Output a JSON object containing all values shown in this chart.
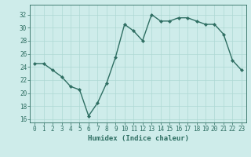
{
  "x": [
    0,
    1,
    2,
    3,
    4,
    5,
    6,
    7,
    8,
    9,
    10,
    11,
    12,
    13,
    14,
    15,
    16,
    17,
    18,
    19,
    20,
    21,
    22,
    23
  ],
  "y": [
    24.5,
    24.5,
    23.5,
    22.5,
    21,
    20.5,
    16.5,
    18.5,
    21.5,
    25.5,
    30.5,
    29.5,
    28,
    32,
    31,
    31,
    31.5,
    31.5,
    31,
    30.5,
    30.5,
    29,
    25,
    23.5
  ],
  "line_color": "#2e6e62",
  "marker": "D",
  "marker_size": 2.2,
  "bg_color": "#ceecea",
  "grid_color": "#aed8d4",
  "xlabel": "Humidex (Indice chaleur)",
  "ylim": [
    15.5,
    33.5
  ],
  "xlim": [
    -0.5,
    23.5
  ],
  "yticks": [
    16,
    18,
    20,
    22,
    24,
    26,
    28,
    30,
    32
  ],
  "xticks": [
    0,
    1,
    2,
    3,
    4,
    5,
    6,
    7,
    8,
    9,
    10,
    11,
    12,
    13,
    14,
    15,
    16,
    17,
    18,
    19,
    20,
    21,
    22,
    23
  ],
  "tick_color": "#2e6e62",
  "label_fontsize": 6.5,
  "tick_fontsize": 5.5,
  "line_width": 1.0
}
